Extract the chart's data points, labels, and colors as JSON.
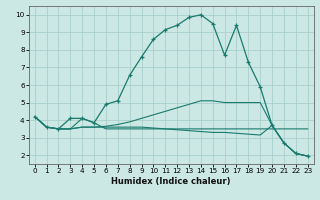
{
  "xlabel": "Humidex (Indice chaleur)",
  "background_color": "#cce8e4",
  "grid_color": "#aad0cc",
  "line_color": "#1a7a6e",
  "x_ticks": [
    0,
    1,
    2,
    3,
    4,
    5,
    6,
    7,
    8,
    9,
    10,
    11,
    12,
    13,
    14,
    15,
    16,
    17,
    18,
    19,
    20,
    21,
    22,
    23
  ],
  "y_ticks": [
    2,
    3,
    4,
    5,
    6,
    7,
    8,
    9,
    10
  ],
  "ylim": [
    1.5,
    10.5
  ],
  "xlim": [
    -0.5,
    23.5
  ],
  "series": [
    [
      4.2,
      3.6,
      3.5,
      3.5,
      4.1,
      3.85,
      3.5,
      3.5,
      3.5,
      3.5,
      3.5,
      3.5,
      3.5,
      3.5,
      3.5,
      3.5,
      3.5,
      3.5,
      3.5,
      3.5,
      3.5,
      3.5,
      3.5,
      3.5
    ],
    [
      4.2,
      3.6,
      3.5,
      4.1,
      4.1,
      3.85,
      4.9,
      5.1,
      6.55,
      7.6,
      8.6,
      9.15,
      9.4,
      9.85,
      10.0,
      9.5,
      7.7,
      9.4,
      7.3,
      5.9,
      3.7,
      2.7,
      2.1,
      1.95
    ],
    [
      4.2,
      3.6,
      3.5,
      3.5,
      3.6,
      3.6,
      3.65,
      3.75,
      3.9,
      4.1,
      4.3,
      4.5,
      4.7,
      4.9,
      5.1,
      5.1,
      5.0,
      5.0,
      5.0,
      5.0,
      3.7,
      2.7,
      2.1,
      1.95
    ],
    [
      4.2,
      3.6,
      3.5,
      3.5,
      3.6,
      3.6,
      3.6,
      3.6,
      3.6,
      3.6,
      3.55,
      3.5,
      3.45,
      3.4,
      3.35,
      3.3,
      3.3,
      3.25,
      3.2,
      3.15,
      3.7,
      2.7,
      2.1,
      1.95
    ]
  ],
  "marker_series": 1,
  "marker": "+",
  "marker_size": 3.5,
  "linewidth_main": 0.9,
  "linewidth_other": 0.8,
  "xlabel_fontsize": 6.0,
  "tick_fontsize": 5.2
}
